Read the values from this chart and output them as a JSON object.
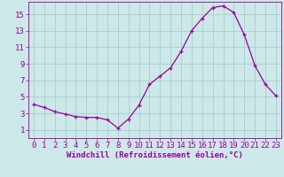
{
  "x": [
    0,
    1,
    2,
    3,
    4,
    5,
    6,
    7,
    8,
    9,
    10,
    11,
    12,
    13,
    14,
    15,
    16,
    17,
    18,
    19,
    20,
    21,
    22,
    23
  ],
  "y": [
    4.1,
    3.7,
    3.2,
    2.9,
    2.6,
    2.5,
    2.5,
    2.2,
    1.2,
    2.3,
    4.0,
    6.5,
    7.5,
    8.5,
    10.5,
    13.0,
    14.5,
    15.8,
    16.0,
    15.2,
    12.5,
    8.8,
    6.5,
    5.1
  ],
  "line_color": "#990099",
  "marker": "+",
  "bg_color": "#cce8e8",
  "grid_color": "#aacece",
  "tick_color": "#990099",
  "xlabel": "Windchill (Refroidissement éolien,°C)",
  "ylim": [
    0,
    16.5
  ],
  "xlim": [
    -0.5,
    23.5
  ],
  "yticks": [
    1,
    3,
    5,
    7,
    9,
    11,
    13,
    15
  ],
  "xticks": [
    0,
    1,
    2,
    3,
    4,
    5,
    6,
    7,
    8,
    9,
    10,
    11,
    12,
    13,
    14,
    15,
    16,
    17,
    18,
    19,
    20,
    21,
    22,
    23
  ],
  "font_size": 6.5,
  "xlabel_fontsize": 6.5,
  "linewidth": 0.9,
  "markersize": 3.0
}
